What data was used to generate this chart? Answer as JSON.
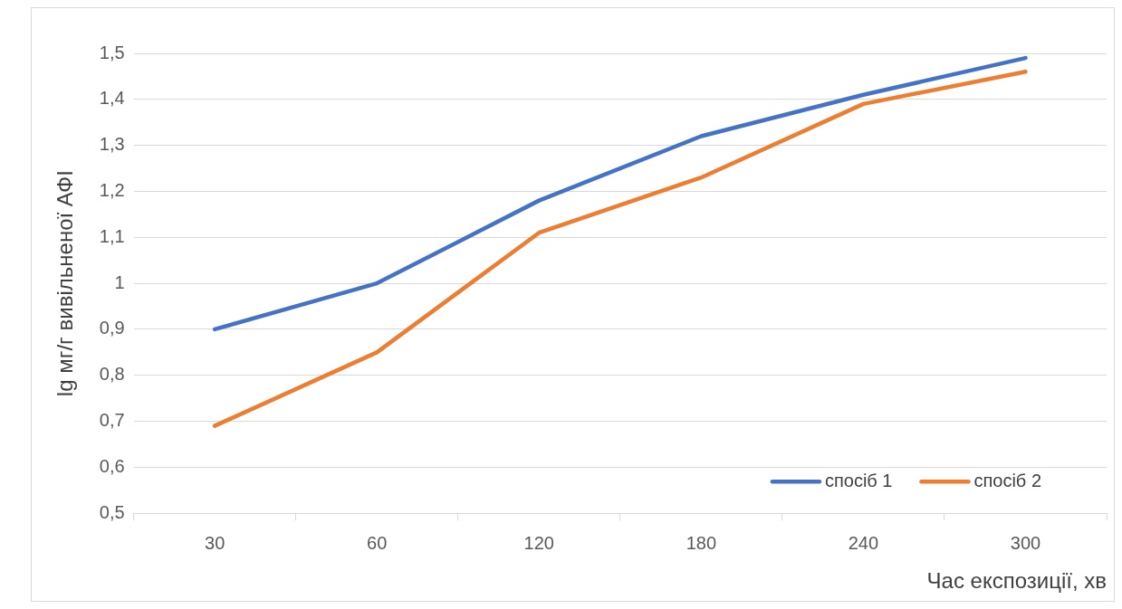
{
  "chart_data": {
    "type": "line",
    "xlabel": "Час експозиції, хв",
    "ylabel": "lg мг/г вивільненої АФІ",
    "categories": [
      "30",
      "60",
      "120",
      "180",
      "240",
      "300"
    ],
    "series": [
      {
        "name": "спосіб 1",
        "color": "#4472c4",
        "values": [
          0.9,
          1.0,
          1.18,
          1.32,
          1.41,
          1.49
        ]
      },
      {
        "name": "спосіб 2",
        "color": "#ed7d31",
        "values": [
          0.69,
          0.85,
          1.11,
          1.23,
          1.39,
          1.46
        ]
      }
    ],
    "ylim": [
      0.5,
      1.5
    ],
    "yticks": [
      {
        "value": 0.5,
        "label": "0,5"
      },
      {
        "value": 0.6,
        "label": "0,6"
      },
      {
        "value": 0.7,
        "label": "0,7"
      },
      {
        "value": 0.8,
        "label": "0,8"
      },
      {
        "value": 0.9,
        "label": "0,9"
      },
      {
        "value": 1,
        "label": "1"
      },
      {
        "value": 1.1,
        "label": "1,1"
      },
      {
        "value": 1.2,
        "label": "1,2"
      },
      {
        "value": 1.3,
        "label": "1,3"
      },
      {
        "value": 1.4,
        "label": "1,4"
      },
      {
        "value": 1.5,
        "label": "1,5"
      }
    ],
    "grid": "y",
    "legend": "bottom right",
    "marker": "none",
    "line_style": "solid"
  }
}
